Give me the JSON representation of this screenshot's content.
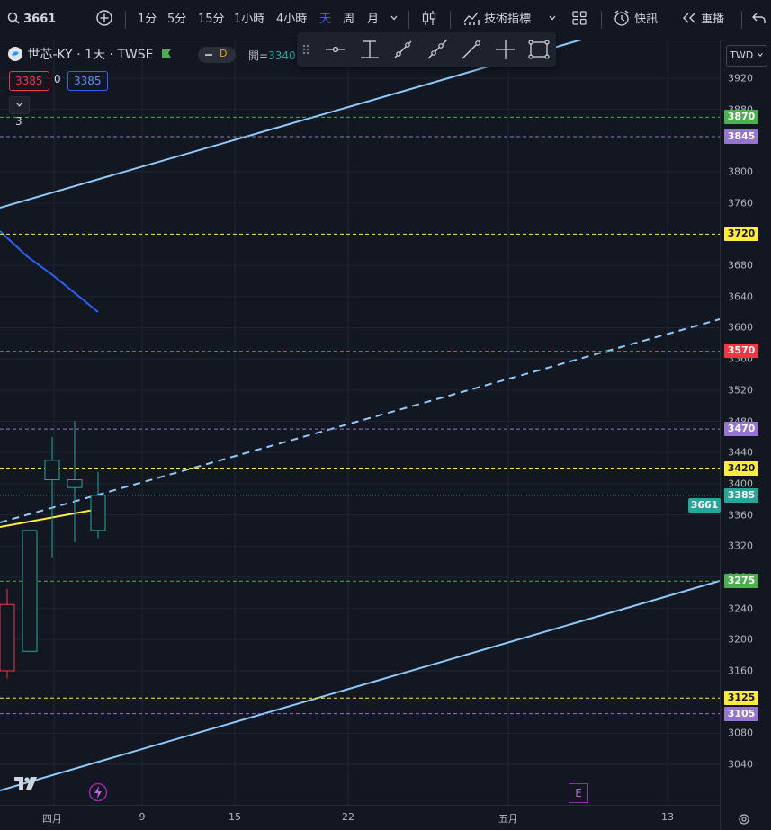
{
  "toolbar": {
    "symbol": "3661",
    "intervals": [
      "1分",
      "5分",
      "15分",
      "1小時",
      "4小時",
      "天",
      "周",
      "月"
    ],
    "active_interval": "天",
    "indicators_label": "技術指標",
    "alerts_label": "快訊",
    "replay_label": "重播"
  },
  "legend": {
    "title": "世芯-KY · 1天 · TWSE",
    "d_badge": "D",
    "open_prefix": "開=",
    "open_value": "3340",
    "bid": "3385",
    "spread": "0",
    "ask": "3385",
    "collapse_count": "3"
  },
  "currency": "TWD",
  "price_axis": {
    "min": 3020,
    "max": 3940,
    "ticks": [
      "3920",
      "3880",
      "3800",
      "3760",
      "3680",
      "3640",
      "3600",
      "3560",
      "3520",
      "3480",
      "3440",
      "3400",
      "3360",
      "3320",
      "3280",
      "3240",
      "3200",
      "3160",
      "3080",
      "3040"
    ]
  },
  "horizontal_levels": [
    {
      "price": 3870,
      "label": "3870",
      "color": "#4caf50",
      "style": "dashed"
    },
    {
      "price": 3845,
      "label": "3845",
      "color": "#9575cd",
      "style": "dashed"
    },
    {
      "price": 3720,
      "label": "3720",
      "color": "#ffeb3b",
      "style": "dashed"
    },
    {
      "price": 3570,
      "label": "3570",
      "color": "#f23645",
      "style": "dashed"
    },
    {
      "price": 3470,
      "label": "3470",
      "color": "#9575cd",
      "style": "dashed"
    },
    {
      "price": 3420,
      "label": "3420",
      "color": "#ffeb3b",
      "style": "dashed"
    },
    {
      "price": 3275,
      "label": "3275",
      "color": "#4caf50",
      "style": "dashed"
    },
    {
      "price": 3125,
      "label": "3125",
      "color": "#ffeb3b",
      "style": "dashed"
    },
    {
      "price": 3105,
      "label": "3105",
      "color": "#9575cd",
      "style": "dashed"
    }
  ],
  "last_price": {
    "price": 3385,
    "label": "3385",
    "symbol_label": "3661",
    "color": "#26a69a"
  },
  "time_axis": {
    "labels": [
      "四月",
      "9",
      "15",
      "22",
      "五月",
      "13"
    ]
  },
  "candles": [
    {
      "open": 3245,
      "high": 3265,
      "low": 3150,
      "close": 3160
    },
    {
      "open": 3185,
      "high": 3340,
      "low": 3185,
      "close": 3340
    },
    {
      "open": 3405,
      "high": 3460,
      "low": 3305,
      "close": 3430
    },
    {
      "open": 3395,
      "high": 3480,
      "low": 3325,
      "close": 3405
    },
    {
      "open": 3340,
      "high": 3415,
      "low": 3330,
      "close": 3385
    }
  ],
  "events": [
    "E"
  ],
  "colors": {
    "up": "#26a69a",
    "down": "#f23645",
    "background": "#131722",
    "grid": "#1f2433",
    "trend": "#90caf9",
    "ma_blue": "#2962ff",
    "ma_yellow": "#ffeb3b"
  }
}
